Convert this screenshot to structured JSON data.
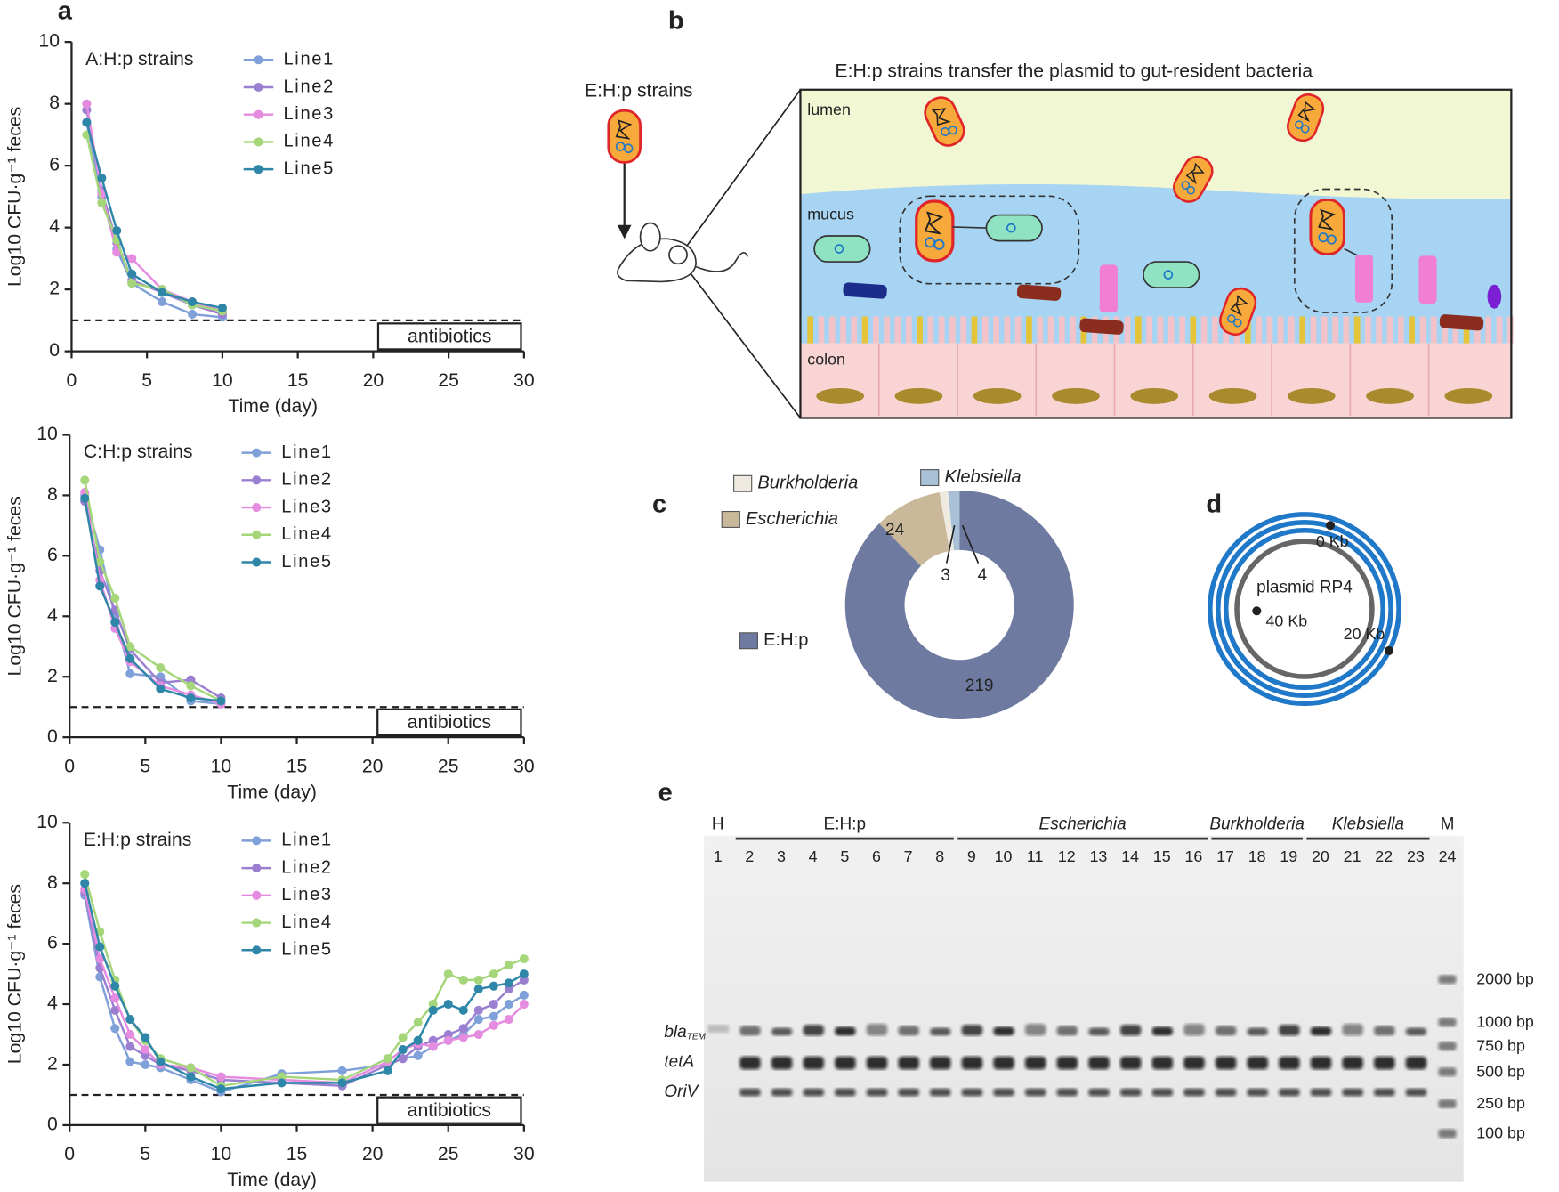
{
  "chart_data": [
    {
      "type": "line",
      "title": "A:H:p strains",
      "xlabel": "Time (day)",
      "ylabel": "Log10 CFU·g⁻¹ feces",
      "x": [
        1,
        2,
        3,
        4,
        6,
        8,
        10
      ],
      "series": [
        {
          "name": "Line1",
          "color": "#7fa0d8",
          "values": [
            7.4,
            5.0,
            3.3,
            2.2,
            1.6,
            1.2,
            1.1
          ]
        },
        {
          "name": "Line2",
          "color": "#9b7fd0",
          "values": [
            7.8,
            5.2,
            3.5,
            2.3,
            1.9,
            1.5,
            1.2
          ]
        },
        {
          "name": "Line3",
          "color": "#e58be0",
          "values": [
            8.0,
            5.1,
            3.2,
            3.0,
            2.0,
            1.6,
            1.3
          ]
        },
        {
          "name": "Line4",
          "color": "#a5d67a",
          "values": [
            7.0,
            4.8,
            3.6,
            2.2,
            2.0,
            1.5,
            1.3
          ]
        },
        {
          "name": "Line5",
          "color": "#2e86a8",
          "values": [
            7.4,
            5.6,
            3.9,
            2.5,
            1.9,
            1.6,
            1.4
          ]
        }
      ],
      "xlim": [
        0,
        30
      ],
      "xticks": [
        0,
        5,
        10,
        15,
        20,
        25,
        30
      ],
      "ylim": [
        0,
        10
      ],
      "yticks": [
        0,
        2,
        4,
        6,
        8,
        10
      ],
      "threshold": 1,
      "annotation": {
        "label": "antibiotics",
        "x": [
          20,
          30
        ]
      }
    },
    {
      "type": "line",
      "title": "C:H:p strains",
      "xlabel": "Time (day)",
      "ylabel": "Log10 CFU·g⁻¹ feces",
      "x": [
        1,
        2,
        3,
        4,
        6,
        8,
        10
      ],
      "series": [
        {
          "name": "Line1",
          "color": "#7fa0d8",
          "values": [
            8.0,
            6.2,
            4.0,
            2.1,
            2.0,
            1.2,
            1.1
          ]
        },
        {
          "name": "Line2",
          "color": "#9b7fd0",
          "values": [
            7.8,
            5.5,
            4.2,
            2.9,
            1.8,
            1.9,
            1.3
          ]
        },
        {
          "name": "Line3",
          "color": "#e58be0",
          "values": [
            8.1,
            5.2,
            3.6,
            2.5,
            1.7,
            1.4,
            1.1
          ]
        },
        {
          "name": "Line4",
          "color": "#a5d67a",
          "values": [
            8.5,
            5.8,
            4.6,
            3.0,
            2.3,
            1.7,
            1.2
          ]
        },
        {
          "name": "Line5",
          "color": "#2e86a8",
          "values": [
            7.9,
            5.0,
            3.8,
            2.6,
            1.6,
            1.3,
            1.2
          ]
        }
      ],
      "xlim": [
        0,
        30
      ],
      "xticks": [
        0,
        5,
        10,
        15,
        20,
        25,
        30
      ],
      "ylim": [
        0,
        10
      ],
      "yticks": [
        0,
        2,
        4,
        6,
        8,
        10
      ],
      "threshold": 1,
      "annotation": {
        "label": "antibiotics",
        "x": [
          20,
          30
        ]
      }
    },
    {
      "type": "line",
      "title": "E:H:p strains",
      "xlabel": "Time (day)",
      "ylabel": "Log10 CFU·g⁻¹ feces",
      "x": [
        1,
        2,
        3,
        4,
        5,
        6,
        8,
        10,
        14,
        18,
        21,
        22,
        23,
        24,
        25,
        26,
        27,
        28,
        29,
        30
      ],
      "series": [
        {
          "name": "Line1",
          "color": "#7fa0d8",
          "values": [
            7.6,
            4.9,
            3.2,
            2.1,
            2.0,
            1.9,
            1.5,
            1.1,
            1.7,
            1.8,
            2.0,
            2.2,
            2.3,
            2.6,
            2.8,
            3.0,
            3.5,
            3.6,
            4.0,
            4.3
          ]
        },
        {
          "name": "Line2",
          "color": "#9b7fd0",
          "values": [
            7.7,
            5.2,
            3.8,
            2.6,
            2.3,
            2.0,
            1.8,
            1.5,
            1.4,
            1.3,
            2.0,
            2.2,
            2.6,
            2.8,
            3.0,
            3.2,
            3.8,
            4.0,
            4.5,
            4.8
          ]
        },
        {
          "name": "Line3",
          "color": "#e58be0",
          "values": [
            7.8,
            5.5,
            4.2,
            3.0,
            2.5,
            2.0,
            1.9,
            1.6,
            1.5,
            1.4,
            2.1,
            2.5,
            2.7,
            2.6,
            2.8,
            2.9,
            3.0,
            3.3,
            3.5,
            4.0
          ]
        },
        {
          "name": "Line4",
          "color": "#a5d67a",
          "values": [
            8.3,
            6.4,
            4.8,
            3.5,
            2.8,
            2.2,
            1.9,
            1.3,
            1.6,
            1.5,
            2.2,
            2.9,
            3.4,
            4.0,
            5.0,
            4.8,
            4.8,
            5.0,
            5.3,
            5.5
          ]
        },
        {
          "name": "Line5",
          "color": "#2e86a8",
          "values": [
            8.0,
            5.9,
            4.6,
            3.5,
            2.9,
            2.1,
            1.6,
            1.2,
            1.4,
            1.4,
            1.8,
            2.5,
            2.8,
            3.8,
            4.0,
            3.8,
            4.5,
            4.6,
            4.7,
            5.0
          ]
        }
      ],
      "xlim": [
        0,
        30
      ],
      "xticks": [
        0,
        5,
        10,
        15,
        20,
        25,
        30
      ],
      "ylim": [
        0,
        10
      ],
      "yticks": [
        0,
        2,
        4,
        6,
        8,
        10
      ],
      "threshold": 1,
      "annotation": {
        "label": "antibiotics",
        "x": [
          20,
          30
        ]
      }
    },
    {
      "type": "pie",
      "categories": [
        "E:H:p",
        "Escherichia",
        "Burkholderia",
        "Klebsiella"
      ],
      "values": [
        219,
        24,
        3,
        4
      ],
      "colors": [
        "#6e7aa0",
        "#c9b99a",
        "#eeeae0",
        "#a9c1d6"
      ],
      "hole": 0.48
    }
  ],
  "panel_labels": [
    "a",
    "b",
    "c",
    "d",
    "e"
  ],
  "diagram": {
    "strain_label": "E:H:p strains",
    "title": "E:H:p strains transfer the plasmid to gut-resident bacteria",
    "layers": [
      "lumen",
      "mucus",
      "colon"
    ]
  },
  "plasmid": {
    "name": "plasmid RP4",
    "marks": [
      "0 Kb",
      "20 Kb",
      "40 Kb"
    ]
  },
  "gel": {
    "groups": [
      "H",
      "E:H:p",
      "Escherichia",
      "Burkholderia",
      "Klebsiella",
      "M"
    ],
    "lanes": [
      1,
      2,
      3,
      4,
      5,
      6,
      7,
      8,
      9,
      10,
      11,
      12,
      13,
      14,
      15,
      16,
      17,
      18,
      19,
      20,
      21,
      22,
      23,
      24
    ],
    "bands": [
      {
        "name": "bla",
        "sub": "TEM"
      },
      {
        "name": "tetA"
      },
      {
        "name": "OriV"
      }
    ],
    "markers": [
      "2000 bp",
      "1000 bp",
      "750 bp",
      "500 bp",
      "250 bp",
      "100 bp"
    ]
  }
}
